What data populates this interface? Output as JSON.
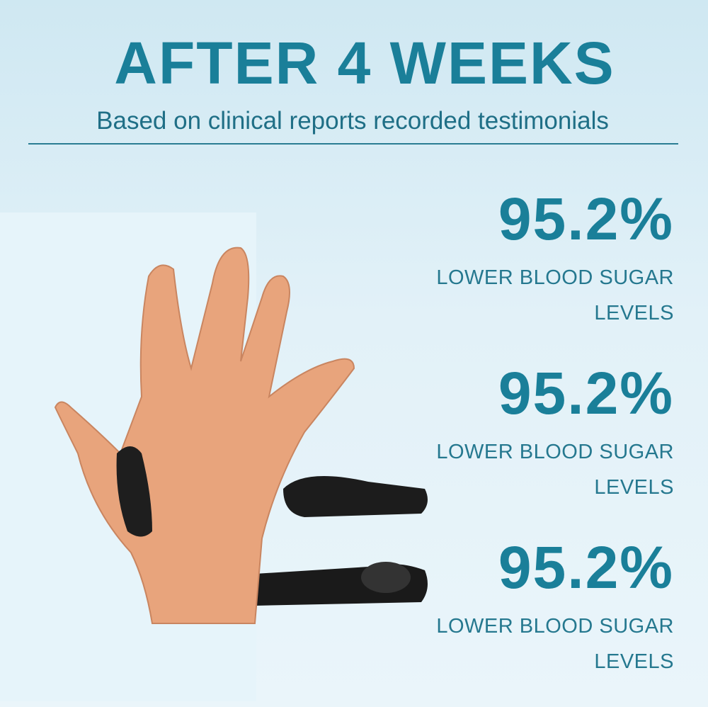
{
  "header": {
    "title": "AFTER 4 WEEKS",
    "subtitle": "Based on clinical reports recorded testimonials"
  },
  "stats": [
    {
      "value": "95.2%",
      "label": [
        "LOWER BLOOD SUGAR",
        "LEVELS"
      ]
    },
    {
      "value": "95.2%",
      "label": [
        "LOWER BLOOD SUGAR",
        "LEVELS"
      ]
    },
    {
      "value": "95.2%",
      "label": [
        "LOWER BLOOD SUGAR",
        "LEVELS"
      ]
    }
  ]
}
